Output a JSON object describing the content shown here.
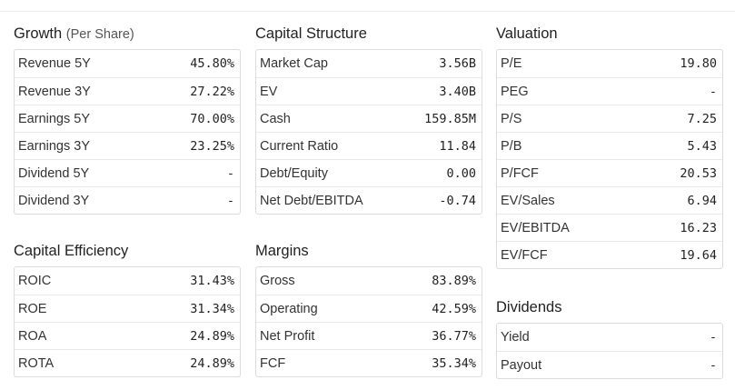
{
  "growth": {
    "title": "Growth",
    "subtitle": "(Per Share)",
    "rows": [
      {
        "label": "Revenue 5Y",
        "value": "45.80%"
      },
      {
        "label": "Revenue 3Y",
        "value": "27.22%"
      },
      {
        "label": "Earnings 5Y",
        "value": "70.00%"
      },
      {
        "label": "Earnings 3Y",
        "value": "23.25%"
      },
      {
        "label": "Dividend 5Y",
        "value": "-"
      },
      {
        "label": "Dividend 3Y",
        "value": "-"
      }
    ]
  },
  "capital_structure": {
    "title": "Capital Structure",
    "rows": [
      {
        "label": "Market Cap",
        "value": "3.56B"
      },
      {
        "label": "EV",
        "value": "3.40B"
      },
      {
        "label": "Cash",
        "value": "159.85M"
      },
      {
        "label": "Current Ratio",
        "value": "11.84"
      },
      {
        "label": "Debt/Equity",
        "value": "0.00"
      },
      {
        "label": "Net Debt/EBITDA",
        "value": "-0.74"
      }
    ]
  },
  "valuation": {
    "title": "Valuation",
    "rows": [
      {
        "label": "P/E",
        "value": "19.80"
      },
      {
        "label": "PEG",
        "value": "-"
      },
      {
        "label": "P/S",
        "value": "7.25"
      },
      {
        "label": "P/B",
        "value": "5.43"
      },
      {
        "label": "P/FCF",
        "value": "20.53"
      },
      {
        "label": "EV/Sales",
        "value": "6.94"
      },
      {
        "label": "EV/EBITDA",
        "value": "16.23"
      },
      {
        "label": "EV/FCF",
        "value": "19.64"
      }
    ]
  },
  "capital_efficiency": {
    "title": "Capital Efficiency",
    "rows": [
      {
        "label": "ROIC",
        "value": "31.43%"
      },
      {
        "label": "ROE",
        "value": "31.34%"
      },
      {
        "label": "ROA",
        "value": "24.89%"
      },
      {
        "label": "ROTA",
        "value": "24.89%"
      }
    ]
  },
  "margins": {
    "title": "Margins",
    "rows": [
      {
        "label": "Gross",
        "value": "83.89%"
      },
      {
        "label": "Operating",
        "value": "42.59%"
      },
      {
        "label": "Net Profit",
        "value": "36.77%"
      },
      {
        "label": "FCF",
        "value": "35.34%"
      }
    ]
  },
  "dividends": {
    "title": "Dividends",
    "rows": [
      {
        "label": "Yield",
        "value": "-"
      },
      {
        "label": "Payout",
        "value": "-"
      }
    ]
  }
}
